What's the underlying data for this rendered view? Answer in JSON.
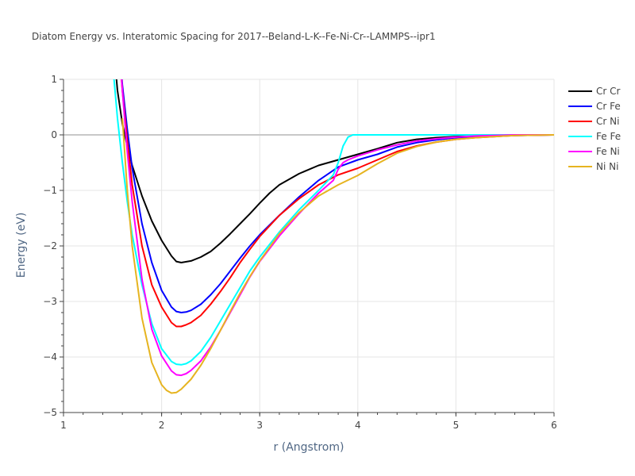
{
  "chart_data": {
    "type": "line",
    "title": "Diatom Energy vs. Interatomic Spacing for 2017--Beland-L-K--Fe-Ni-Cr--LAMMPS--ipr1",
    "xlabel": "r (Angstrom)",
    "ylabel": "Energy (eV)",
    "xlim": [
      1,
      6
    ],
    "ylim": [
      -5,
      1
    ],
    "xticks": [
      1,
      2,
      3,
      4,
      5,
      6
    ],
    "yticks": [
      1,
      0,
      -1,
      -2,
      -3,
      -4,
      -5
    ],
    "xtick_labels": [
      "1",
      "2",
      "3",
      "4",
      "5",
      "6"
    ],
    "ytick_labels": [
      "1",
      "0",
      "−1",
      "−2",
      "−3",
      "−4",
      "−5"
    ],
    "grid": true,
    "legend_position": "top-right",
    "series": [
      {
        "name": "Cr Cr",
        "color": "#000000",
        "x": [
          1.5,
          1.55,
          1.6,
          1.65,
          1.7,
          1.8,
          1.9,
          2.0,
          2.1,
          2.15,
          2.2,
          2.3,
          2.4,
          2.5,
          2.6,
          2.7,
          2.8,
          2.9,
          3.0,
          3.1,
          3.2,
          3.4,
          3.6,
          3.8,
          4.0,
          4.2,
          4.4,
          4.6,
          4.8,
          5.0,
          5.2,
          5.4,
          5.6,
          6.0
        ],
        "y": [
          1.8,
          0.8,
          0.2,
          -0.2,
          -0.55,
          -1.1,
          -1.55,
          -1.9,
          -2.18,
          -2.28,
          -2.3,
          -2.27,
          -2.2,
          -2.1,
          -1.95,
          -1.78,
          -1.6,
          -1.42,
          -1.23,
          -1.05,
          -0.9,
          -0.7,
          -0.55,
          -0.45,
          -0.35,
          -0.25,
          -0.14,
          -0.08,
          -0.05,
          -0.03,
          -0.02,
          -0.01,
          0,
          0
        ]
      },
      {
        "name": "Cr Fe",
        "color": "#0000ff",
        "x": [
          1.55,
          1.6,
          1.65,
          1.7,
          1.8,
          1.9,
          2.0,
          2.1,
          2.15,
          2.2,
          2.25,
          2.3,
          2.4,
          2.5,
          2.6,
          2.7,
          2.8,
          2.9,
          3.0,
          3.2,
          3.4,
          3.6,
          3.8,
          4.0,
          4.2,
          4.4,
          4.6,
          4.8,
          5.0,
          5.2,
          5.4,
          5.6,
          6.0
        ],
        "y": [
          2.0,
          0.9,
          0.1,
          -0.6,
          -1.6,
          -2.3,
          -2.8,
          -3.1,
          -3.18,
          -3.2,
          -3.19,
          -3.16,
          -3.05,
          -2.88,
          -2.68,
          -2.45,
          -2.22,
          -2.0,
          -1.8,
          -1.45,
          -1.12,
          -0.82,
          -0.58,
          -0.45,
          -0.35,
          -0.22,
          -0.14,
          -0.09,
          -0.05,
          -0.03,
          -0.02,
          -0.01,
          0
        ]
      },
      {
        "name": "Cr Ni",
        "color": "#ff0000",
        "x": [
          1.55,
          1.6,
          1.65,
          1.7,
          1.8,
          1.9,
          2.0,
          2.1,
          2.15,
          2.2,
          2.25,
          2.3,
          2.4,
          2.5,
          2.6,
          2.7,
          2.8,
          2.9,
          3.0,
          3.2,
          3.4,
          3.6,
          3.8,
          4.0,
          4.2,
          4.4,
          4.6,
          4.8,
          5.0,
          5.2,
          5.4,
          5.6,
          6.0
        ],
        "y": [
          2.0,
          0.8,
          -0.1,
          -0.9,
          -2.0,
          -2.7,
          -3.1,
          -3.38,
          -3.45,
          -3.45,
          -3.42,
          -3.38,
          -3.25,
          -3.05,
          -2.82,
          -2.57,
          -2.3,
          -2.06,
          -1.83,
          -1.45,
          -1.15,
          -0.9,
          -0.72,
          -0.6,
          -0.45,
          -0.3,
          -0.2,
          -0.13,
          -0.08,
          -0.05,
          -0.03,
          -0.01,
          0
        ]
      },
      {
        "name": "Fe Fe",
        "color": "#00ffff",
        "x": [
          1.5,
          1.55,
          1.6,
          1.65,
          1.7,
          1.8,
          1.9,
          2.0,
          2.1,
          2.15,
          2.2,
          2.25,
          2.3,
          2.4,
          2.5,
          2.6,
          2.7,
          2.8,
          2.9,
          3.0,
          3.2,
          3.4,
          3.6,
          3.75,
          3.8,
          3.85,
          3.9,
          3.95,
          4.0,
          4.5,
          5.0,
          5.5,
          6.0
        ],
        "y": [
          1.3,
          0.3,
          -0.5,
          -1.2,
          -1.8,
          -2.7,
          -3.4,
          -3.85,
          -4.08,
          -4.13,
          -4.14,
          -4.12,
          -4.07,
          -3.9,
          -3.65,
          -3.35,
          -3.05,
          -2.75,
          -2.45,
          -2.2,
          -1.75,
          -1.35,
          -1.0,
          -0.72,
          -0.5,
          -0.2,
          -0.04,
          0,
          0,
          0,
          0,
          0,
          0
        ]
      },
      {
        "name": "Fe Ni",
        "color": "#ff00ff",
        "x": [
          1.55,
          1.6,
          1.65,
          1.7,
          1.8,
          1.9,
          2.0,
          2.1,
          2.15,
          2.2,
          2.25,
          2.3,
          2.4,
          2.5,
          2.6,
          2.7,
          2.8,
          2.9,
          3.0,
          3.2,
          3.4,
          3.6,
          3.75,
          3.8,
          3.85,
          3.9,
          4.0,
          4.2,
          4.4,
          4.6,
          4.8,
          5.0,
          5.2,
          5.4,
          5.6,
          6.0
        ],
        "y": [
          2.0,
          0.8,
          -0.3,
          -1.2,
          -2.6,
          -3.5,
          -3.98,
          -4.25,
          -4.32,
          -4.33,
          -4.3,
          -4.24,
          -4.07,
          -3.82,
          -3.52,
          -3.2,
          -2.88,
          -2.56,
          -2.28,
          -1.82,
          -1.42,
          -1.05,
          -0.82,
          -0.62,
          -0.5,
          -0.45,
          -0.38,
          -0.27,
          -0.18,
          -0.11,
          -0.07,
          -0.04,
          -0.02,
          -0.01,
          0,
          0
        ]
      },
      {
        "name": "Ni Ni",
        "color": "#e6b420",
        "x": [
          1.6,
          1.65,
          1.7,
          1.8,
          1.9,
          2.0,
          2.05,
          2.1,
          2.15,
          2.2,
          2.3,
          2.4,
          2.5,
          2.6,
          2.7,
          2.8,
          2.9,
          3.0,
          3.2,
          3.4,
          3.6,
          3.8,
          4.0,
          4.2,
          4.4,
          4.6,
          4.8,
          5.0,
          5.2,
          5.4,
          5.6,
          6.0
        ],
        "y": [
          0.3,
          -1.0,
          -2.0,
          -3.3,
          -4.1,
          -4.5,
          -4.6,
          -4.65,
          -4.64,
          -4.58,
          -4.4,
          -4.15,
          -3.85,
          -3.52,
          -3.18,
          -2.85,
          -2.55,
          -2.27,
          -1.78,
          -1.4,
          -1.1,
          -0.9,
          -0.73,
          -0.52,
          -0.33,
          -0.21,
          -0.13,
          -0.08,
          -0.05,
          -0.03,
          -0.01,
          0
        ]
      }
    ]
  }
}
